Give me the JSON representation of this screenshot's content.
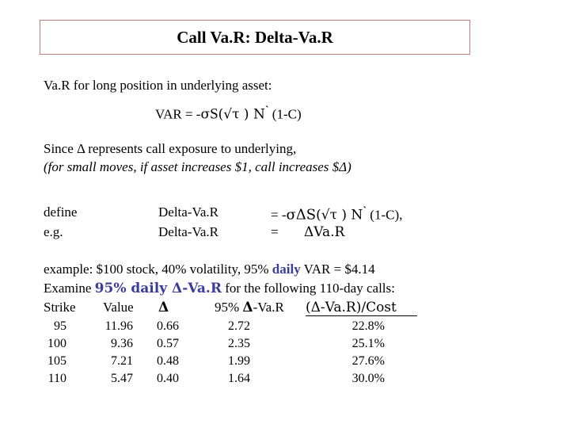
{
  "title": "Call Va.R:  Delta-Va.R",
  "intro": {
    "heading": "Va.R for long position in underlying asset:",
    "formula": {
      "prefix": "VAR = -",
      "sigma": "σ",
      "s": "S",
      "rest": "(√τ ) N",
      "tick": "`",
      "tail": "(1-C)"
    }
  },
  "since": {
    "line1": "Since Δ represents call exposure to underlying,",
    "line2": "(for small moves, if asset increases $1, call increases $Δ)"
  },
  "define": {
    "row1": {
      "label": "define",
      "term": "Delta-Va.R",
      "eq_prefix": "=  -",
      "eq_sigma_delta_s": "σΔS",
      "eq_rest": "(√τ ) N",
      "eq_tick": "`",
      "eq_tail": "(1-C),"
    },
    "row2": {
      "label": "e.g.",
      "term": "Delta-Va.R",
      "eq_prefix": "=",
      "eq_rest": "ΔVa.R"
    }
  },
  "example": {
    "line1_a": "example:  $100 stock, 40% volatility, 95% ",
    "line1_daily": "daily",
    "line1_b": " VAR = $4.14",
    "line2_a": "Examine ",
    "line2_blue": "95% daily Δ-Va.R",
    "line2_b": " for the following 110-day calls:"
  },
  "table": {
    "headers": {
      "strike": "Strike",
      "value": "Value",
      "delta": "Δ",
      "dvar_pre": "95% ",
      "dvar_sym": "Δ",
      "dvar_post": "-Va.R",
      "ratio": "(Δ-Va.R)/Cost"
    },
    "rows": [
      {
        "strike": "95",
        "value": "11.96",
        "delta": "0.66",
        "dvar": "2.72",
        "ratio": "22.8%"
      },
      {
        "strike": "100",
        "value": "9.36",
        "delta": "0.57",
        "dvar": "2.35",
        "ratio": "25.1%"
      },
      {
        "strike": "105",
        "value": "7.21",
        "delta": "0.48",
        "dvar": "1.99",
        "ratio": "27.6%"
      },
      {
        "strike": "110",
        "value": "5.47",
        "delta": "0.40",
        "dvar": "1.64",
        "ratio": "30.0%"
      }
    ]
  },
  "colors": {
    "accent": "#3b3b9a",
    "title_border": "#c08080"
  }
}
